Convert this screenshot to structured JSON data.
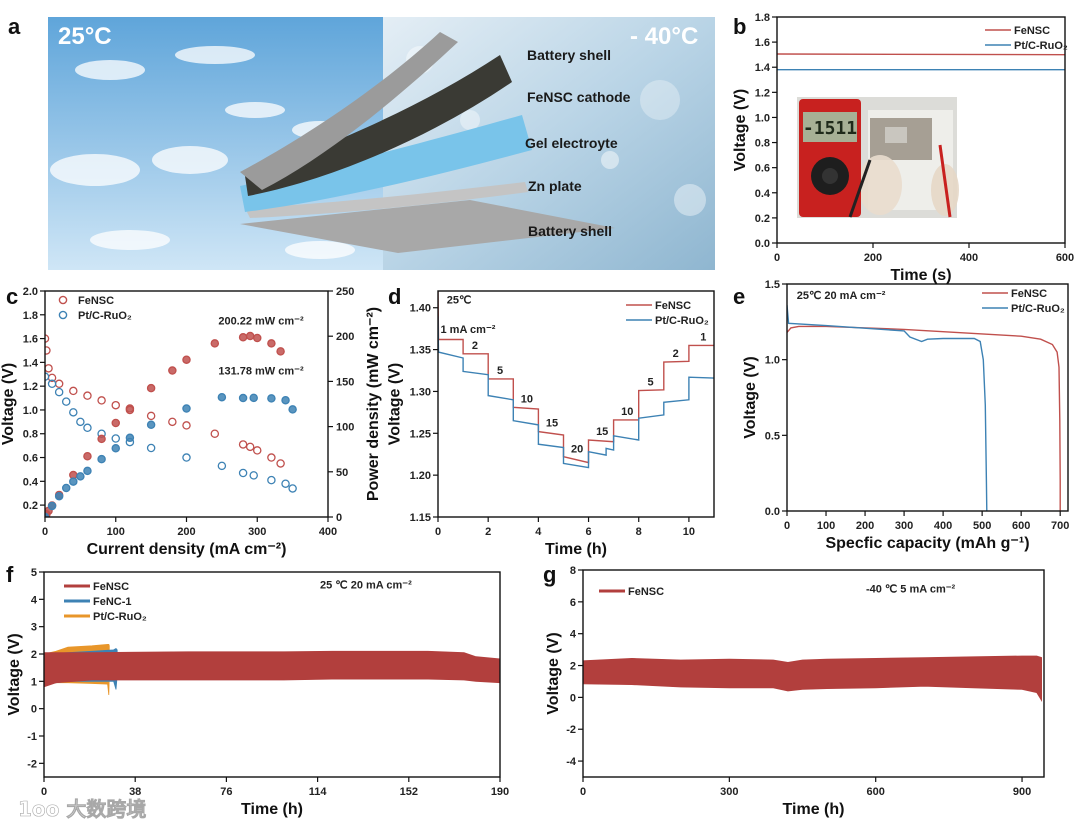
{
  "panel_letters": {
    "a": "a",
    "b": "b",
    "c": "c",
    "d": "d",
    "e": "e",
    "f": "f",
    "g": "g"
  },
  "panel_a": {
    "warm_label": "25°C",
    "cold_label": "- 40°C",
    "layers": [
      "Battery shell",
      "FeNSC cathode",
      "Gel electroyte",
      "Zn plate",
      "Battery shell"
    ]
  },
  "inset_b": {
    "display": "-1511"
  },
  "watermark": "1oo 大数跨境",
  "colors": {
    "fensc": "#c0504d",
    "pt": "#3d82b4",
    "fenc": "#3d82b4",
    "pt_f": "#e8962a",
    "band": "#b23f3d"
  },
  "chart_data": [
    {
      "panel": "b",
      "type": "line",
      "title": "",
      "xlabel": "Time (s)",
      "ylabel": "Voltage (V)",
      "xlim": [
        0,
        600
      ],
      "ylim": [
        0,
        1.8
      ],
      "xticks": [
        "0",
        "200",
        "400",
        "600"
      ],
      "yticks": [
        "0.0",
        "0.2",
        "0.4",
        "0.6",
        "0.8",
        "1.0",
        "1.2",
        "1.4",
        "1.6",
        "1.8"
      ],
      "legend": "top-right",
      "series": [
        {
          "name": "FeNSC",
          "style": "line",
          "color": "#c0504d",
          "x": [
            0,
            600
          ],
          "y": [
            1.505,
            1.5
          ]
        },
        {
          "name": "Pt/C-RuO₂",
          "style": "line",
          "color": "#3d82b4",
          "x": [
            0,
            600
          ],
          "y": [
            1.38,
            1.38
          ]
        }
      ],
      "annotations": []
    },
    {
      "panel": "c",
      "type": "scatter",
      "title": "",
      "xlabel": "Current density (mA cm⁻²)",
      "ylabel": "Voltage (V)",
      "y2label": "Power density (mW cm⁻²)",
      "xlim": [
        0,
        400
      ],
      "ylim": [
        0.1,
        2.0
      ],
      "y2lim": [
        0,
        250
      ],
      "xticks": [
        "0",
        "100",
        "200",
        "300",
        "400"
      ],
      "yticks": [
        "0.2",
        "0.4",
        "0.6",
        "0.8",
        "1.0",
        "1.2",
        "1.4",
        "1.6",
        "1.8",
        "2.0"
      ],
      "y2ticks": [
        "0",
        "50",
        "100",
        "150",
        "200",
        "250"
      ],
      "legend": "top-left",
      "series": [
        {
          "name": "FeNSC",
          "style": "scatter",
          "color": "#c0504d",
          "axis": "left",
          "x": [
            0,
            2,
            5,
            10,
            20,
            40,
            60,
            80,
            100,
            120,
            150,
            180,
            200,
            240,
            280,
            290,
            300,
            320,
            333
          ],
          "y": [
            1.6,
            1.5,
            1.35,
            1.27,
            1.22,
            1.16,
            1.12,
            1.08,
            1.04,
            1.0,
            0.95,
            0.9,
            0.87,
            0.8,
            0.71,
            0.69,
            0.66,
            0.6,
            0.55
          ]
        },
        {
          "name": "Pt/C-RuO₂",
          "style": "scatter",
          "color": "#3d82b4",
          "axis": "left",
          "x": [
            0,
            10,
            20,
            30,
            40,
            50,
            60,
            80,
            100,
            120,
            150,
            200,
            250,
            280,
            295,
            320,
            340,
            350
          ],
          "y": [
            1.28,
            1.22,
            1.15,
            1.07,
            0.98,
            0.9,
            0.85,
            0.8,
            0.76,
            0.73,
            0.68,
            0.6,
            0.53,
            0.47,
            0.45,
            0.41,
            0.38,
            0.34
          ]
        },
        {
          "name": "FeNSC power",
          "style": "scatter-filled",
          "color": "#c0504d",
          "axis": "right",
          "legend": false,
          "x": [
            0,
            2,
            5,
            10,
            20,
            40,
            60,
            80,
            100,
            120,
            150,
            180,
            200,
            240,
            280,
            290,
            300,
            320,
            333
          ],
          "y": [
            0,
            3,
            6.8,
            12.7,
            24.4,
            46.4,
            67.2,
            86.4,
            104,
            120,
            142.5,
            162,
            174,
            192,
            198.8,
            200.2,
            198,
            192,
            183.2
          ]
        },
        {
          "name": "Pt/C-RuO₂ power",
          "style": "scatter-filled",
          "color": "#3d82b4",
          "axis": "right",
          "legend": false,
          "x": [
            0,
            10,
            20,
            30,
            40,
            50,
            60,
            80,
            100,
            120,
            150,
            200,
            250,
            280,
            295,
            320,
            340,
            350
          ],
          "y": [
            0,
            12.2,
            23,
            32.1,
            39.2,
            45,
            51,
            64,
            76,
            87.6,
            102,
            120,
            132.5,
            131.6,
            131.8,
            131.2,
            129.2,
            119
          ]
        }
      ],
      "annotations": [
        {
          "text": "200.22 mW cm⁻²",
          "x": 245,
          "y": 1.72
        },
        {
          "text": "131.78 mW cm⁻²",
          "x": 245,
          "y": 1.3
        }
      ]
    },
    {
      "panel": "d",
      "type": "line",
      "title": "",
      "xlabel": "Time (h)",
      "ylabel": "Voltage (V)",
      "xlim": [
        0,
        11
      ],
      "ylim": [
        1.15,
        1.42
      ],
      "xticks": [
        "0",
        "2",
        "4",
        "6",
        "8",
        "10"
      ],
      "yticks": [
        "1.15",
        "1.20",
        "1.25",
        "1.30",
        "1.35",
        "1.40"
      ],
      "legend": "top-right",
      "series": [
        {
          "name": "FeNSC",
          "style": "line",
          "color": "#c0504d",
          "x": [
            0,
            0.02,
            1,
            1,
            2,
            2,
            3,
            3,
            4,
            4,
            5,
            5,
            6,
            6,
            7,
            7,
            8,
            8,
            9,
            9,
            10,
            10,
            11
          ],
          "y": [
            1.42,
            1.362,
            1.362,
            1.345,
            1.345,
            1.315,
            1.315,
            1.281,
            1.279,
            1.252,
            1.248,
            1.222,
            1.215,
            1.242,
            1.24,
            1.266,
            1.266,
            1.301,
            1.302,
            1.335,
            1.336,
            1.355,
            1.355
          ]
        },
        {
          "name": "Pt/C-RuO₂",
          "style": "line",
          "color": "#3d82b4",
          "x": [
            0,
            0.02,
            1,
            1,
            2,
            2,
            3,
            3,
            4,
            4,
            5,
            5,
            6,
            6,
            6.7,
            6.7,
            7,
            7,
            8,
            8,
            9,
            9,
            10,
            10,
            11
          ],
          "y": [
            1.39,
            1.347,
            1.34,
            1.324,
            1.32,
            1.295,
            1.29,
            1.265,
            1.26,
            1.237,
            1.233,
            1.214,
            1.209,
            1.228,
            1.224,
            1.232,
            1.23,
            1.247,
            1.242,
            1.268,
            1.272,
            1.287,
            1.29,
            1.317,
            1.316
          ]
        }
      ],
      "annotations": [
        {
          "text": "25℃",
          "x": 0.35,
          "y": 1.405
        },
        {
          "text": "1 mA cm⁻²",
          "x": 0.1,
          "y": 1.37
        },
        {
          "text": "2",
          "x": 1.35,
          "y": 1.351
        },
        {
          "text": "5",
          "x": 2.35,
          "y": 1.321
        },
        {
          "text": "10",
          "x": 3.3,
          "y": 1.287
        },
        {
          "text": "15",
          "x": 4.3,
          "y": 1.258
        },
        {
          "text": "20",
          "x": 5.3,
          "y": 1.227
        },
        {
          "text": "15",
          "x": 6.3,
          "y": 1.248
        },
        {
          "text": "10",
          "x": 7.3,
          "y": 1.272
        },
        {
          "text": "5",
          "x": 8.35,
          "y": 1.307
        },
        {
          "text": "2",
          "x": 9.35,
          "y": 1.341
        },
        {
          "text": "1",
          "x": 10.45,
          "y": 1.361
        }
      ]
    },
    {
      "panel": "e",
      "type": "line",
      "title": "",
      "xlabel": "Specfic capacity (mAh g⁻¹)",
      "ylabel": "Voltage (V)",
      "xlim": [
        0,
        720
      ],
      "ylim": [
        0,
        1.5
      ],
      "xticks": [
        "0",
        "100",
        "200",
        "300",
        "400",
        "500",
        "600",
        "700"
      ],
      "yticks": [
        "0.0",
        "0.5",
        "1.0",
        "1.5"
      ],
      "legend": "top-right",
      "series": [
        {
          "name": "FeNSC",
          "style": "line",
          "color": "#c0504d",
          "x": [
            0,
            10,
            30,
            100,
            300,
            500,
            600,
            650,
            680,
            692,
            697,
            699,
            700,
            700
          ],
          "y": [
            1.18,
            1.21,
            1.22,
            1.22,
            1.2,
            1.17,
            1.155,
            1.135,
            1.1,
            1.05,
            0.95,
            0.6,
            0.2,
            0
          ]
        },
        {
          "name": "Pt/C-RuO₂",
          "style": "line",
          "color": "#3d82b4",
          "x": [
            0,
            4,
            100,
            300,
            315,
            345,
            360,
            400,
            480,
            495,
            503,
            508,
            511,
            512
          ],
          "y": [
            1.36,
            1.24,
            1.225,
            1.19,
            1.15,
            1.12,
            1.135,
            1.14,
            1.14,
            1.12,
            1.0,
            0.7,
            0.2,
            0
          ]
        }
      ],
      "annotations": [
        {
          "text": "25℃ 20 mA cm⁻²",
          "x": 25,
          "y": 1.4
        }
      ]
    },
    {
      "panel": "f",
      "type": "area",
      "title": "",
      "xlabel": "Time (h)",
      "ylabel": "Voltage (V)",
      "xlim": [
        0,
        190
      ],
      "ylim": [
        -2.5,
        5
      ],
      "xticks": [
        "0",
        "38",
        "76",
        "114",
        "152",
        "190"
      ],
      "yticks": [
        "-2",
        "-1",
        "0",
        "1",
        "2",
        "3",
        "4",
        "5"
      ],
      "legend": "top-left",
      "series": [
        {
          "name": "Pt/C-RuO₂",
          "style": "band",
          "color": "#e8962a",
          "x": [
            0,
            5,
            10,
            20,
            26.5,
            27,
            27.2
          ],
          "upper": [
            2.0,
            2.1,
            2.25,
            2.3,
            2.35,
            2.35,
            2.3
          ],
          "lower": [
            0.9,
            0.95,
            0.95,
            0.92,
            0.9,
            0.5,
            1.2
          ]
        },
        {
          "name": "FeNC-1",
          "style": "band",
          "color": "#3d82b4",
          "x": [
            0,
            10,
            20,
            29,
            30,
            30.5
          ],
          "upper": [
            2.0,
            2.05,
            2.1,
            2.15,
            2.2,
            2.15
          ],
          "lower": [
            0.9,
            1.0,
            1.0,
            1.0,
            0.7,
            1.2
          ]
        },
        {
          "name": "FeNSC",
          "style": "band",
          "color": "#b23f3d",
          "x": [
            0,
            5,
            20,
            60,
            100,
            120,
            160,
            175,
            180,
            190
          ],
          "upper": [
            2.05,
            2.05,
            2.05,
            2.08,
            2.08,
            2.1,
            2.1,
            2.05,
            1.9,
            1.82
          ],
          "lower": [
            0.8,
            0.95,
            1.05,
            1.05,
            1.05,
            1.08,
            1.08,
            1.05,
            1.0,
            0.95
          ]
        }
      ],
      "legend_order": [
        2,
        1,
        0
      ],
      "annotations": [
        {
          "text": "25 ℃ 20 mA cm⁻²",
          "x": 115,
          "y": 4.4
        }
      ]
    },
    {
      "panel": "g",
      "type": "area",
      "title": "",
      "xlabel": "Time (h)",
      "ylabel": "Voltage (V)",
      "xlim": [
        0,
        945
      ],
      "ylim": [
        -5,
        8
      ],
      "xticks": [
        "0",
        "300",
        "600",
        "900"
      ],
      "yticks": [
        "-4",
        "-2",
        "0",
        "2",
        "4",
        "6",
        "8"
      ],
      "legend": "top-left",
      "series": [
        {
          "name": "FeNSC",
          "style": "band",
          "color": "#b23f3d",
          "x": [
            0,
            100,
            200,
            300,
            390,
            420,
            450,
            500,
            600,
            700,
            800,
            900,
            930,
            940
          ],
          "upper": [
            2.3,
            2.45,
            2.35,
            2.4,
            2.35,
            2.2,
            2.35,
            2.4,
            2.45,
            2.5,
            2.55,
            2.6,
            2.6,
            2.5
          ],
          "lower": [
            0.85,
            0.8,
            0.65,
            0.6,
            0.6,
            0.4,
            0.5,
            0.55,
            0.6,
            0.7,
            0.6,
            0.5,
            0.3,
            -0.2
          ]
        }
      ],
      "annotations": [
        {
          "text": "-40 ℃ 5 mA cm⁻²",
          "x": 580,
          "y": 6.6
        }
      ]
    }
  ]
}
